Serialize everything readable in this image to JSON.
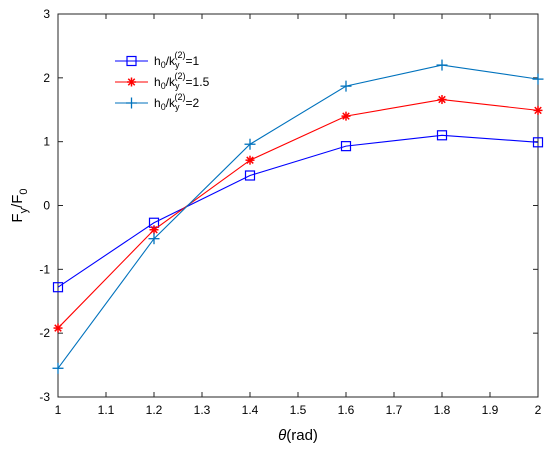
{
  "chart_data": {
    "type": "line",
    "title": "",
    "xlabel": "θ(rad)",
    "ylabel_base": "F",
    "ylabel_sub": "y",
    "ylabel_div": "/F",
    "ylabel_sub2": "0",
    "xlim": [
      1,
      2
    ],
    "ylim": [
      -3,
      3
    ],
    "grid": false,
    "legend_position": "top-left",
    "x": [
      1,
      1.2,
      1.4,
      1.6,
      1.8,
      2
    ],
    "x_ticks": [
      "1",
      "1.1",
      "1.2",
      "1.3",
      "1.4",
      "1.5",
      "1.6",
      "1.7",
      "1.8",
      "1.9",
      "2"
    ],
    "y_ticks": [
      "-3",
      "-2",
      "-1",
      "0",
      "1",
      "2",
      "3"
    ],
    "series": [
      {
        "name": "h0/ky(2)=1",
        "legend_main": "h",
        "legend_sub": "0",
        "legend_mid": "/k",
        "legend_sub2": "y",
        "legend_sup": "(2)",
        "legend_tail": "=1",
        "color": "#0000ff",
        "marker": "square",
        "values": [
          -1.28,
          -0.27,
          0.47,
          0.93,
          1.1,
          0.99
        ]
      },
      {
        "name": "h0/ky(2)=1.5",
        "legend_main": "h",
        "legend_sub": "0",
        "legend_mid": "/k",
        "legend_sub2": "y",
        "legend_sup": "(2)",
        "legend_tail": "=1.5",
        "color": "#ff0000",
        "marker": "asterisk",
        "values": [
          -1.92,
          -0.38,
          0.71,
          1.4,
          1.66,
          1.49
        ]
      },
      {
        "name": "h0/ky(2)=2",
        "legend_main": "h",
        "legend_sub": "0",
        "legend_mid": "/k",
        "legend_sub2": "y",
        "legend_sup": "(2)",
        "legend_tail": "=2",
        "color": "#0072bd",
        "marker": "plus",
        "values": [
          -2.55,
          -0.52,
          0.96,
          1.87,
          2.2,
          1.98
        ]
      }
    ]
  }
}
